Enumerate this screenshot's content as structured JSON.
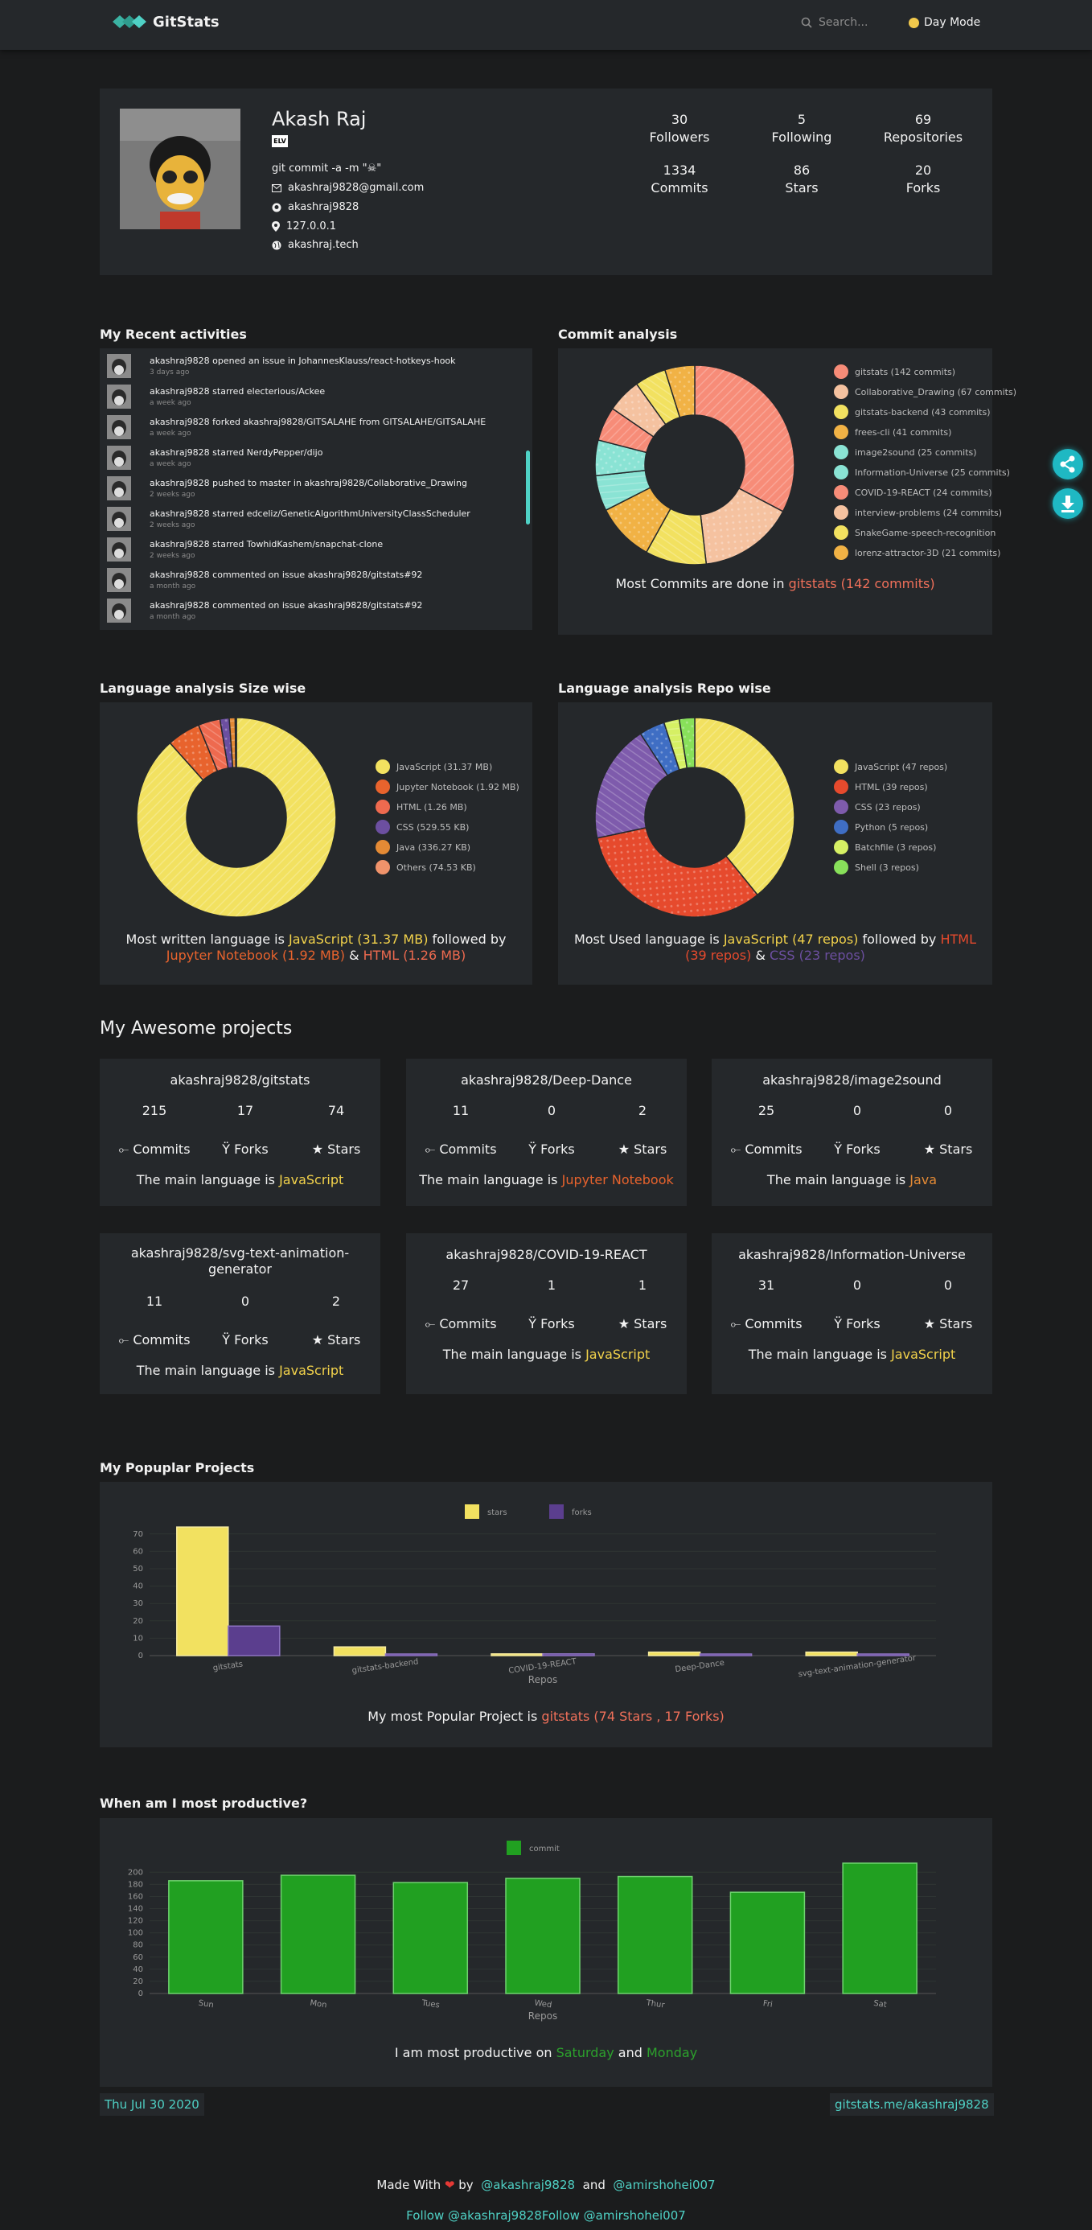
{
  "nav": {
    "brand": "GitStats",
    "search_placeholder": "Search...",
    "daymode": "Day Mode"
  },
  "profile": {
    "name": "Akash Raj",
    "badge": "ELV",
    "bio": "git commit -a -m \"☠\"",
    "email": "akashraj9828@gmail.com",
    "github": "akashraj9828",
    "location": "127.0.0.1",
    "website": "akashraj.tech",
    "stats": [
      {
        "value": "30",
        "label": "Followers"
      },
      {
        "value": "5",
        "label": "Following"
      },
      {
        "value": "69",
        "label": "Repositories"
      },
      {
        "value": "1334",
        "label": "Commits"
      },
      {
        "value": "86",
        "label": "Stars"
      },
      {
        "value": "20",
        "label": "Forks"
      }
    ]
  },
  "activities": {
    "title": "My Recent activities",
    "items": [
      {
        "text": "akashraj9828 opened an issue in JohannesKlauss/react-hotkeys-hook",
        "time": "3 days ago"
      },
      {
        "text": "akashraj9828 starred electerious/Ackee",
        "time": "a week ago"
      },
      {
        "text": "akashraj9828 forked akashraj9828/GITSALAHE from GITSALAHE/GITSALAHE",
        "time": "a week ago"
      },
      {
        "text": "akashraj9828 starred NerdyPepper/dijo",
        "time": "a week ago"
      },
      {
        "text": "akashraj9828 pushed to master in akashraj9828/Collaborative_Drawing",
        "time": "2 weeks ago"
      },
      {
        "text": "akashraj9828 starred edceliz/GeneticAlgorithmUniversityClassScheduler",
        "time": "2 weeks ago"
      },
      {
        "text": "akashraj9828 starred TowhidKashem/snapchat-clone",
        "time": "2 weeks ago"
      },
      {
        "text": "akashraj9828 commented on issue akashraj9828/gitstats#92",
        "time": "a month ago"
      },
      {
        "text": "akashraj9828 commented on issue akashraj9828/gitstats#92",
        "time": "a month ago"
      }
    ]
  },
  "commit_analysis": {
    "title": "Commit analysis",
    "caption_prefix": "Most Commits are done in",
    "caption_highlight": "gitstats (142 commits)",
    "legend": [
      "gitstats (142 commits)",
      "Collaborative_Drawing (67 commits)",
      "gitstats-backend (43 commits)",
      "frees-cli (41 commits)",
      "image2sound (25 commits)",
      "Information-Universe (25 commits)",
      "COVID-19-REACT (24 commits)",
      "interview-problems (24 commits)",
      "SnakeGame-speech-recognition",
      "lorenz-attractor-3D (21 commits)"
    ],
    "colors": [
      "#f78c78",
      "#f5c2a0",
      "#f2e160",
      "#f1b245",
      "#8ae3d4",
      "#8ae3d4",
      "#f78c78",
      "#f5c2a0",
      "#f2e160",
      "#f1b245"
    ]
  },
  "lang_size": {
    "title": "Language analysis Size wise",
    "legend": [
      "JavaScript (31.37 MB)",
      "Jupyter Notebook (1.92 MB)",
      "HTML (1.26 MB)",
      "CSS (529.55 KB)",
      "Java (336.27 KB)",
      "Others (74.53 KB)"
    ],
    "colors": [
      "#f2e160",
      "#e8632d",
      "#ee6a4f",
      "#6c4fa0",
      "#e48a35",
      "#f0936b"
    ],
    "caption": {
      "prefix": "Most written language is",
      "first": "JavaScript (31.37 MB)",
      "mid": "followed by",
      "second": "Jupyter Notebook (1.92 MB)",
      "amp": "&",
      "third": "HTML (1.26 MB)"
    }
  },
  "lang_repo": {
    "title": "Language analysis Repo wise",
    "legend": [
      "JavaScript (47 repos)",
      "HTML (39 repos)",
      "CSS (23 repos)",
      "Python (5 repos)",
      "Batchfile (3 repos)",
      "Shell (3 repos)"
    ],
    "colors": [
      "#f2e160",
      "#e64a2d",
      "#7e5bac",
      "#3f6ec4",
      "#d6f064",
      "#88e05a"
    ],
    "caption": {
      "prefix": "Most Used language is",
      "first": "JavaScript (47 repos)",
      "mid": "followed by",
      "second": "HTML (39 repos)",
      "amp": "&",
      "third": "CSS (23 repos)"
    }
  },
  "projects": {
    "title": "My Awesome projects",
    "labels": {
      "commits": "⟜ Commits",
      "forks": "Ÿ Forks",
      "stars": "★ Stars",
      "lang_prefix": "The main language is"
    },
    "items": [
      {
        "name": "akashraj9828/gitstats",
        "commits": "215",
        "forks": "17",
        "stars": "74",
        "lang": "JavaScript"
      },
      {
        "name": "akashraj9828/Deep-Dance",
        "commits": "11",
        "forks": "0",
        "stars": "2",
        "lang": "Jupyter Notebook"
      },
      {
        "name": "akashraj9828/image2sound",
        "commits": "25",
        "forks": "0",
        "stars": "0",
        "lang": "Java"
      },
      {
        "name": "akashraj9828/svg-text-animation-generator",
        "commits": "11",
        "forks": "0",
        "stars": "2",
        "lang": "JavaScript"
      },
      {
        "name": "akashraj9828/COVID-19-REACT",
        "commits": "27",
        "forks": "1",
        "stars": "1",
        "lang": "JavaScript"
      },
      {
        "name": "akashraj9828/Information-Universe",
        "commits": "31",
        "forks": "0",
        "stars": "0",
        "lang": "JavaScript"
      }
    ]
  },
  "popular": {
    "title": "My Popuplar Projects",
    "caption_prefix": "My most Popular Project is",
    "caption_highlight": "gitstats (74 Stars , 17 Forks)"
  },
  "productive": {
    "title": "When am I most productive?",
    "caption_prefix": "I am most productive on",
    "day1": "Saturday",
    "and": "and",
    "day2": "Monday"
  },
  "chart_data": [
    {
      "type": "pie",
      "title": "Commit analysis",
      "categories": [
        "gitstats",
        "Collaborative_Drawing",
        "gitstats-backend",
        "frees-cli",
        "image2sound",
        "Information-Universe",
        "COVID-19-REACT",
        "interview-problems",
        "SnakeGame-speech-recognition",
        "lorenz-attractor-3D"
      ],
      "values": [
        142,
        67,
        43,
        41,
        25,
        25,
        24,
        24,
        22,
        21
      ]
    },
    {
      "type": "pie",
      "title": "Language analysis Size wise",
      "categories": [
        "JavaScript",
        "Jupyter Notebook",
        "HTML",
        "CSS",
        "Java",
        "Others"
      ],
      "values": [
        31.37,
        1.92,
        1.26,
        0.53,
        0.34,
        0.07
      ]
    },
    {
      "type": "pie",
      "title": "Language analysis Repo wise",
      "categories": [
        "JavaScript",
        "HTML",
        "CSS",
        "Python",
        "Batchfile",
        "Shell"
      ],
      "values": [
        47,
        39,
        23,
        5,
        3,
        3
      ]
    },
    {
      "type": "bar",
      "title": "My Popuplar Projects",
      "categories": [
        "gitstats",
        "gitstats-backend",
        "COVID-19-REACT",
        "Deep-Dance",
        "svg-text-animation-generator"
      ],
      "series": [
        {
          "name": "stars",
          "values": [
            74,
            5,
            1,
            2,
            2
          ]
        },
        {
          "name": "forks",
          "values": [
            17,
            0,
            1,
            0,
            0
          ]
        }
      ],
      "xlabel": "Repos",
      "ylabel": "",
      "ylim": [
        0,
        75
      ],
      "yticks": [
        0,
        10,
        20,
        30,
        40,
        50,
        60,
        70
      ]
    },
    {
      "type": "bar",
      "title": "When am I most productive?",
      "categories": [
        "Sun",
        "Mon",
        "Tues",
        "Wed",
        "Thur",
        "Fri",
        "Sat"
      ],
      "series": [
        {
          "name": "commit",
          "values": [
            186,
            195,
            183,
            190,
            193,
            167,
            215
          ]
        }
      ],
      "xlabel": "Repos",
      "ylabel": "",
      "ylim": [
        0,
        215
      ],
      "yticks": [
        0,
        20,
        40,
        60,
        80,
        100,
        120,
        140,
        160,
        180,
        200
      ]
    }
  ],
  "footer": {
    "date": "Thu Jul 30 2020",
    "link": "gitstats.me/akashraj9828",
    "made_with": "Made With",
    "heart": "❤",
    "by": "by",
    "author1": "@akashraj9828",
    "and": "and",
    "author2": "@amirshohei007",
    "follow1": "Follow @akashraj9828",
    "follow2": "Follow @amirshohei007"
  }
}
